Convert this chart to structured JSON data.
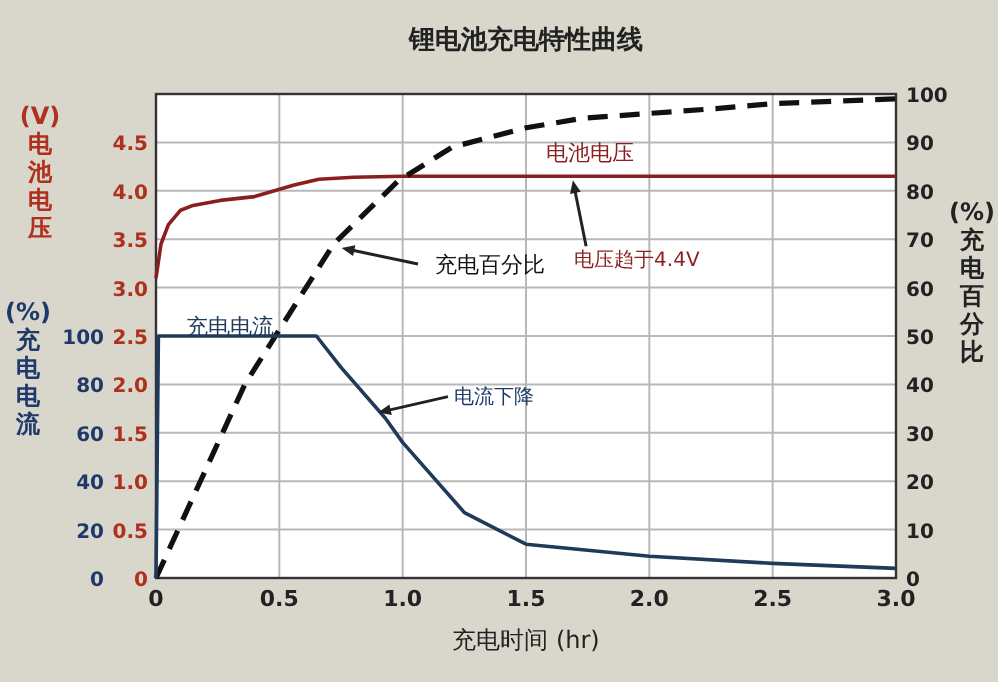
{
  "chart_data": {
    "type": "line",
    "title": "锂电池充电特性曲线",
    "xlabel": "充电时间 (hr)",
    "ylabel": "(V)电池电压",
    "y2label": "(%)充电百分比",
    "y3label": "(%)充电电流",
    "xlim": [
      0,
      3
    ],
    "xticks": [
      0,
      {
        "value": 0.5,
        "label": "0.5"
      },
      {
        "value": 1,
        "label": "1.0"
      },
      {
        "value": 1.5,
        "label": "1.5"
      },
      {
        "value": 2,
        "label": "2.0"
      },
      {
        "value": 2.5,
        "label": "2.5"
      },
      {
        "value": 3,
        "label": "3.0"
      }
    ],
    "ylim": [
      0,
      5
    ],
    "yticks": [
      0,
      {
        "value": 0.5,
        "label": "0.5"
      },
      {
        "value": 1,
        "label": "1.0"
      },
      {
        "value": 1.5,
        "label": "1.5"
      },
      {
        "value": 2,
        "label": "2.0"
      },
      {
        "value": 2.5,
        "label": "2.5"
      },
      {
        "value": 3,
        "label": "3.0"
      },
      {
        "value": 3.5,
        "label": "3.5"
      },
      {
        "value": 4,
        "label": "4.0"
      },
      {
        "value": 4.5,
        "label": "4.5"
      }
    ],
    "y2lim": [
      0,
      100
    ],
    "y2ticks": [
      0,
      10,
      20,
      30,
      40,
      50,
      60,
      70,
      80,
      90,
      100
    ],
    "y3lim": [
      0,
      200
    ],
    "y3ticks": [
      0,
      20,
      40,
      60,
      80,
      100
    ],
    "grid": true,
    "series": [
      {
        "name": "电池电压",
        "color": "#8b1e1e",
        "axis": "y",
        "line_style": "solid",
        "x": [
          0,
          0.02,
          0.05,
          0.1,
          0.15,
          0.26,
          0.4,
          0.48,
          0.56,
          0.66,
          0.8,
          1.0,
          1.5,
          2.0,
          2.5,
          3.0
        ],
        "values": [
          3.1,
          3.45,
          3.65,
          3.8,
          3.85,
          3.9,
          3.94,
          4.0,
          4.06,
          4.12,
          4.14,
          4.15,
          4.15,
          4.15,
          4.15,
          4.15
        ]
      },
      {
        "name": "充电百分比",
        "color": "#111111",
        "axis": "y2",
        "line_style": "dashed",
        "x": [
          0,
          0.36,
          0.72,
          0.98,
          1.2,
          1.5,
          1.73,
          2.0,
          2.27,
          2.5,
          3.0
        ],
        "values": [
          0,
          40,
          69,
          82,
          89,
          93,
          95,
          96,
          97,
          98,
          99
        ]
      },
      {
        "name": "充电电流",
        "color": "#1f3a5a",
        "axis": "y3",
        "line_style": "solid",
        "x": [
          0,
          0.01,
          0.3,
          0.65,
          0.75,
          0.93,
          1.0,
          1.25,
          1.5,
          2.0,
          2.5,
          3.0
        ],
        "values": [
          0,
          100,
          100,
          100,
          87,
          66,
          56,
          27,
          14,
          9,
          6,
          4
        ]
      }
    ],
    "annotations": [
      {
        "text": "电压趋于4.4V",
        "x": 1.69,
        "y": 4.15
      },
      {
        "text": "电流下降",
        "x": 0.9,
        "y": 1.75
      }
    ]
  }
}
